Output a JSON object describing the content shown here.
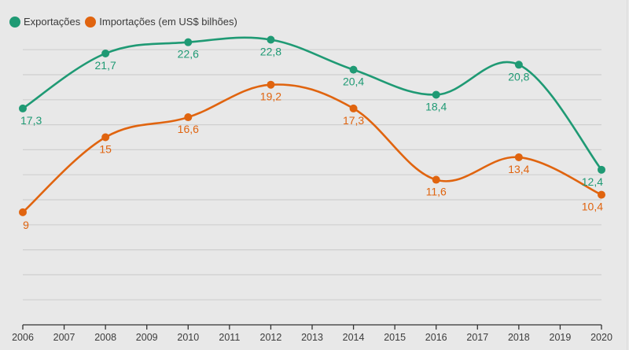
{
  "chart_data": {
    "type": "line",
    "title": "",
    "xlabel": "",
    "ylabel": "",
    "x": [
      "2006",
      "2007",
      "2008",
      "2009",
      "2010",
      "2011",
      "2012",
      "2013",
      "2014",
      "2015",
      "2016",
      "2017",
      "2018",
      "2019",
      "2020"
    ],
    "ylim": [
      0,
      24
    ],
    "grid": true,
    "grid_step": 2,
    "legend_position": "top-left",
    "series": [
      {
        "name": "Exportações",
        "color": "#1f9a74",
        "points": [
          {
            "x": "2006",
            "y": 17.3,
            "label": "17,3"
          },
          {
            "x": "2008",
            "y": 21.7,
            "label": "21,7"
          },
          {
            "x": "2010",
            "y": 22.6,
            "label": "22,6"
          },
          {
            "x": "2012",
            "y": 22.8,
            "label": "22,8"
          },
          {
            "x": "2014",
            "y": 20.4,
            "label": "20,4"
          },
          {
            "x": "2016",
            "y": 18.4,
            "label": "18,4"
          },
          {
            "x": "2018",
            "y": 20.8,
            "label": "20,8"
          },
          {
            "x": "2020",
            "y": 12.4,
            "label": "12,4"
          }
        ]
      },
      {
        "name": "Importações (em US$ bilhões)",
        "color": "#e0640f",
        "points": [
          {
            "x": "2006",
            "y": 9,
            "label": "9"
          },
          {
            "x": "2008",
            "y": 15,
            "label": "15"
          },
          {
            "x": "2010",
            "y": 16.6,
            "label": "16,6"
          },
          {
            "x": "2012",
            "y": 19.2,
            "label": "19,2"
          },
          {
            "x": "2014",
            "y": 17.3,
            "label": "17,3"
          },
          {
            "x": "2016",
            "y": 11.6,
            "label": "11,6"
          },
          {
            "x": "2018",
            "y": 13.4,
            "label": "13,4"
          },
          {
            "x": "2020",
            "y": 10.4,
            "label": "10,4"
          }
        ]
      }
    ]
  },
  "legend": {
    "items": [
      {
        "label": "Exportações",
        "color": "#1f9a74"
      },
      {
        "label": "Importações (em US$ bilhões)",
        "color": "#e0640f"
      }
    ]
  }
}
